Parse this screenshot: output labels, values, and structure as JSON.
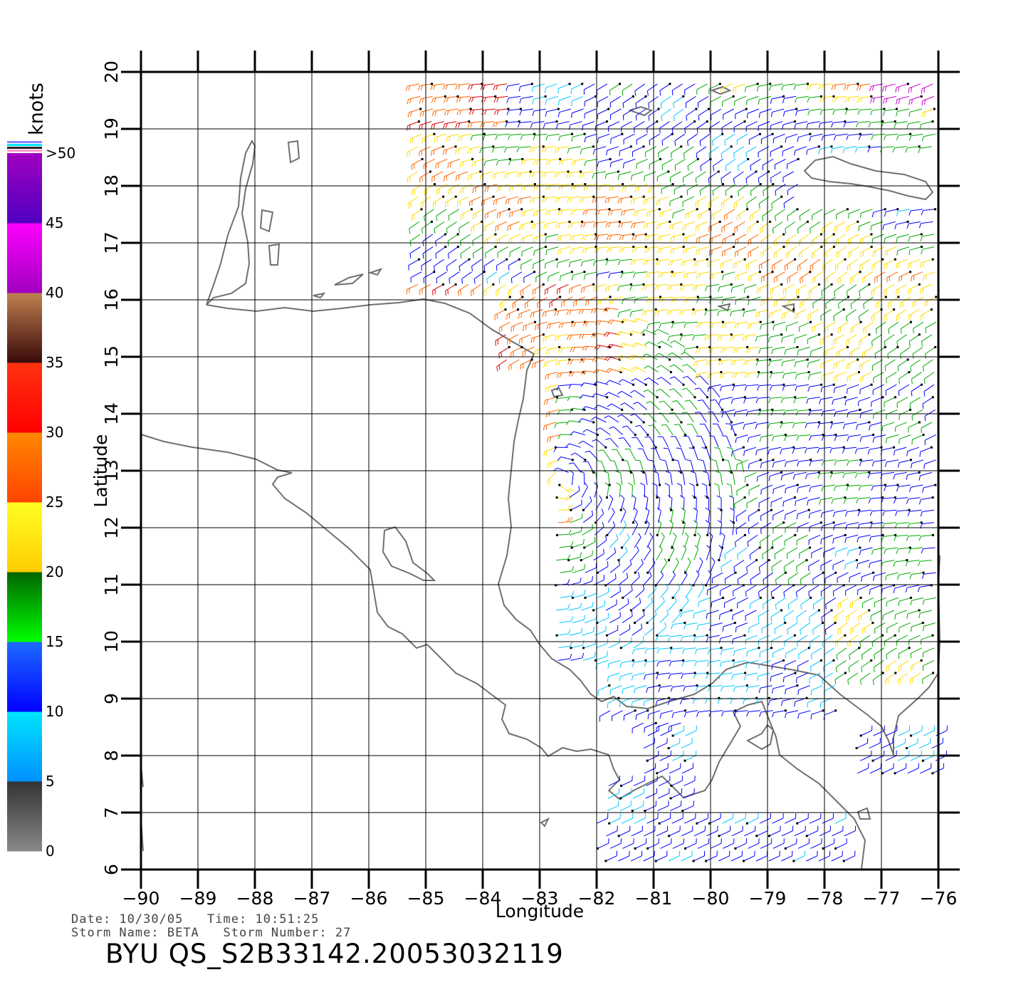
{
  "product": "BYU QS_S2B33142.20053032119",
  "info": {
    "date_label": "Date:",
    "date": "10/30/05",
    "time_label": "Time:",
    "time": "10:51:25",
    "storm_name_label": "Storm Name:",
    "storm_name": "BETA",
    "storm_number_label": "Storm Number:",
    "storm_number": "27"
  },
  "axes": {
    "xlabel": "Longitude",
    "ylabel": "Latitude",
    "lon_range": [
      -90,
      -76
    ],
    "lat_range": [
      6,
      20
    ],
    "lon_ticks": [
      "-90",
      "-89",
      "-88",
      "-87",
      "-86",
      "-85",
      "-84",
      "-83",
      "-82",
      "-81",
      "-80",
      "-79",
      "-78",
      "-77",
      "-76"
    ],
    "lat_ticks": [
      "6",
      "7",
      "8",
      "9",
      "10",
      "11",
      "12",
      "13",
      "14",
      "15",
      "16",
      "17",
      "18",
      "19",
      "20"
    ],
    "grid": true
  },
  "legend": {
    "unit": "knots",
    "labels": [
      "0",
      "5",
      "10",
      "15",
      "20",
      "25",
      "30",
      "35",
      "40",
      "45",
      ">50"
    ],
    "bands": [
      {
        "from": 0,
        "to": 5,
        "top": "#333333",
        "bottom": "#888888"
      },
      {
        "from": 5,
        "to": 10,
        "top": "#00e6ff",
        "bottom": "#0090ff"
      },
      {
        "from": 10,
        "to": 15,
        "top": "#1e6cff",
        "bottom": "#0000ff"
      },
      {
        "from": 15,
        "to": 20,
        "top": "#006400",
        "bottom": "#00ff00"
      },
      {
        "from": 20,
        "to": 25,
        "top": "#ffff22",
        "bottom": "#ffcc00"
      },
      {
        "from": 25,
        "to": 30,
        "top": "#ff8800",
        "bottom": "#ff4400"
      },
      {
        "from": 30,
        "to": 35,
        "top": "#ff3311",
        "bottom": "#ff0000"
      },
      {
        "from": 35,
        "to": 40,
        "top": "#c08050",
        "bottom": "#3a0a0a"
      },
      {
        "from": 40,
        "to": 45,
        "top": "#ff00ff",
        "bottom": "#a000c0"
      },
      {
        "from": 45,
        "to": 50,
        "top": "#a000c0",
        "bottom": "#5000c0"
      }
    ]
  },
  "colors": {
    "coast": "#707070",
    "grid": "#000000",
    "calm": "#0000ff",
    "light": "#00c8ff",
    "moderate": "#00aa00",
    "fresh": "#ffdd00",
    "strong": "#ff6600",
    "gale": "#dd0000",
    "storm": "#cc00cc"
  }
}
